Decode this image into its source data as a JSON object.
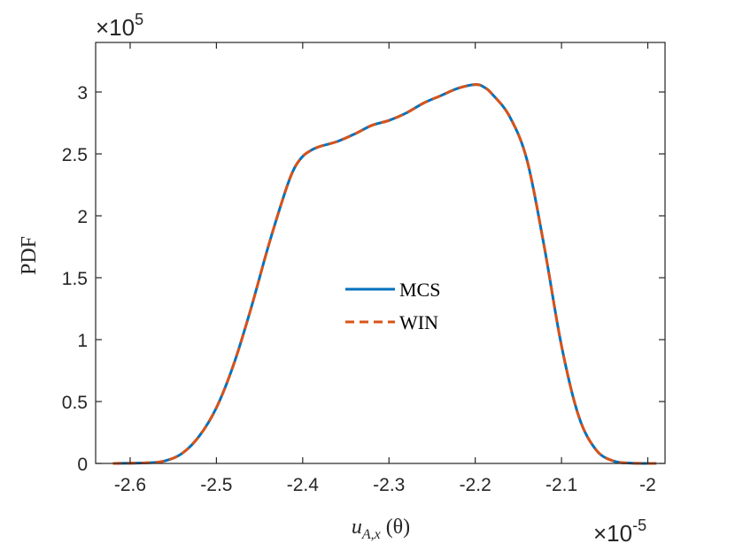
{
  "chart_data": {
    "type": "line",
    "xlabel_base": "u",
    "xlabel_sub": "A,x",
    "xlabel_arg": " (θ)",
    "ylabel": "PDF",
    "x_multiplier_label": "×10",
    "x_multiplier_exp": "-5",
    "y_multiplier_label": "×10",
    "y_multiplier_exp": "5",
    "xlim": [
      -2.64,
      -1.98
    ],
    "ylim": [
      0,
      3.4
    ],
    "xticks": [
      -2.6,
      -2.5,
      -2.4,
      -2.3,
      -2.2,
      -2.1,
      -2.0
    ],
    "xtick_labels": [
      "-2.6",
      "-2.5",
      "-2.4",
      "-2.3",
      "-2.2",
      "-2.1",
      "-2"
    ],
    "yticks": [
      0,
      0.5,
      1,
      1.5,
      2,
      2.5,
      3
    ],
    "ytick_labels": [
      "0",
      "0.5",
      "1",
      "1.5",
      "2",
      "2.5",
      "3"
    ],
    "grid": false,
    "legend_position": "center",
    "colors": {
      "MCS": "#0072BD",
      "WIN": "#D95319"
    },
    "series": [
      {
        "name": "MCS",
        "style": "solid",
        "x": [
          -2.62,
          -2.58,
          -2.56,
          -2.54,
          -2.52,
          -2.5,
          -2.48,
          -2.46,
          -2.44,
          -2.42,
          -2.41,
          -2.4,
          -2.39,
          -2.38,
          -2.36,
          -2.34,
          -2.32,
          -2.3,
          -2.28,
          -2.26,
          -2.24,
          -2.22,
          -2.2,
          -2.19,
          -2.18,
          -2.16,
          -2.14,
          -2.12,
          -2.1,
          -2.08,
          -2.06,
          -2.04,
          -2.02,
          -1.99
        ],
        "y": [
          0,
          0.005,
          0.02,
          0.08,
          0.22,
          0.45,
          0.8,
          1.25,
          1.75,
          2.2,
          2.38,
          2.48,
          2.53,
          2.56,
          2.6,
          2.66,
          2.73,
          2.77,
          2.83,
          2.91,
          2.97,
          3.03,
          3.06,
          3.04,
          2.98,
          2.8,
          2.45,
          1.75,
          0.95,
          0.38,
          0.11,
          0.02,
          0.003,
          0
        ]
      },
      {
        "name": "WIN",
        "style": "dashed",
        "x": [
          -2.62,
          -2.58,
          -2.56,
          -2.54,
          -2.52,
          -2.5,
          -2.48,
          -2.46,
          -2.44,
          -2.42,
          -2.41,
          -2.4,
          -2.39,
          -2.38,
          -2.36,
          -2.34,
          -2.32,
          -2.3,
          -2.28,
          -2.26,
          -2.24,
          -2.22,
          -2.2,
          -2.19,
          -2.18,
          -2.16,
          -2.14,
          -2.12,
          -2.1,
          -2.08,
          -2.06,
          -2.04,
          -2.02,
          -1.99
        ],
        "y": [
          0,
          0.005,
          0.02,
          0.08,
          0.22,
          0.45,
          0.8,
          1.25,
          1.75,
          2.2,
          2.38,
          2.48,
          2.53,
          2.56,
          2.6,
          2.66,
          2.73,
          2.77,
          2.83,
          2.91,
          2.97,
          3.03,
          3.06,
          3.04,
          2.98,
          2.8,
          2.45,
          1.75,
          0.95,
          0.38,
          0.11,
          0.02,
          0.003,
          0
        ]
      }
    ]
  }
}
